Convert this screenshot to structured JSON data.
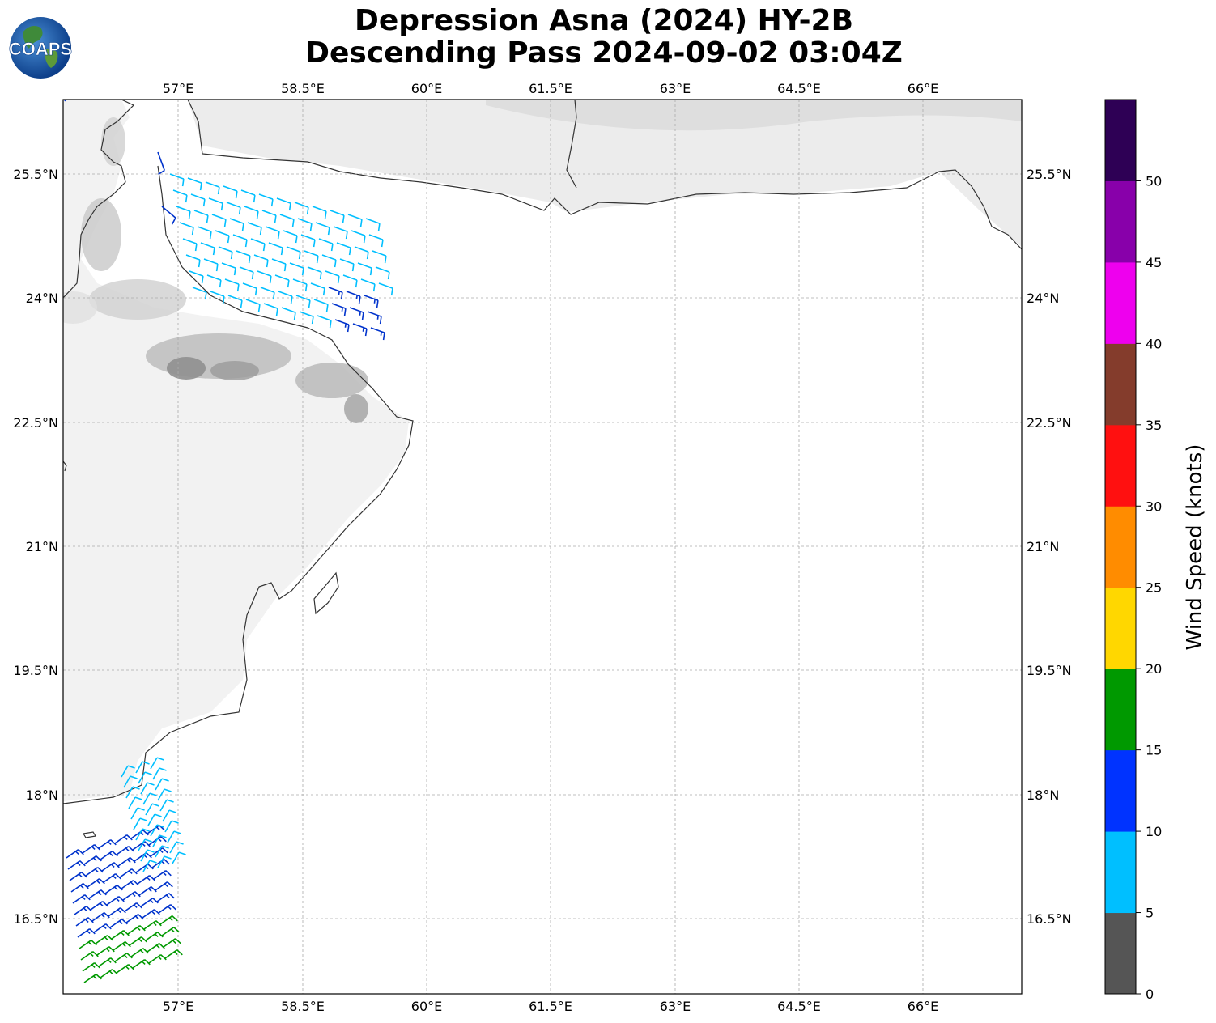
{
  "title": {
    "line1": "Depression Asna (2024) HY-2B",
    "line2": "Descending Pass 2024-09-02 03:04Z"
  },
  "logo": {
    "text": "COAPS"
  },
  "axes": {
    "lon_ticks": [
      "57°E",
      "58.5°E",
      "60°E",
      "61.5°E",
      "63°E",
      "64.5°E",
      "66°E"
    ],
    "lat_ticks": [
      "25.5°N",
      "24°N",
      "22.5°N",
      "21°N",
      "19.5°N",
      "18°N",
      "16.5°N"
    ]
  },
  "colorbar": {
    "label": "Wind Speed (knots)",
    "ticks": [
      "0",
      "5",
      "10",
      "15",
      "20",
      "25",
      "30",
      "35",
      "40",
      "45",
      "50"
    ],
    "colors": [
      "#555555",
      "#00bfff",
      "#0033ff",
      "#009900",
      "#ffd700",
      "#ff8c00",
      "#ff1010",
      "#843c2c",
      "#ee00ee",
      "#8800aa",
      "#2e0055"
    ]
  },
  "chart_data": {
    "type": "map",
    "lon_range": [
      55.6,
      67.2
    ],
    "lat_range": [
      15.5,
      26.3
    ],
    "wind_units": "knots",
    "swaths": [
      {
        "lat_range": [
          23.9,
          25.8
        ],
        "lon_range": [
          56.7,
          59.5
        ],
        "speed_knots": "5-15"
      },
      {
        "lat_range": [
          15.5,
          18.4
        ],
        "lon_range": [
          55.6,
          57.1
        ],
        "speed_knots": "5-20"
      }
    ]
  }
}
